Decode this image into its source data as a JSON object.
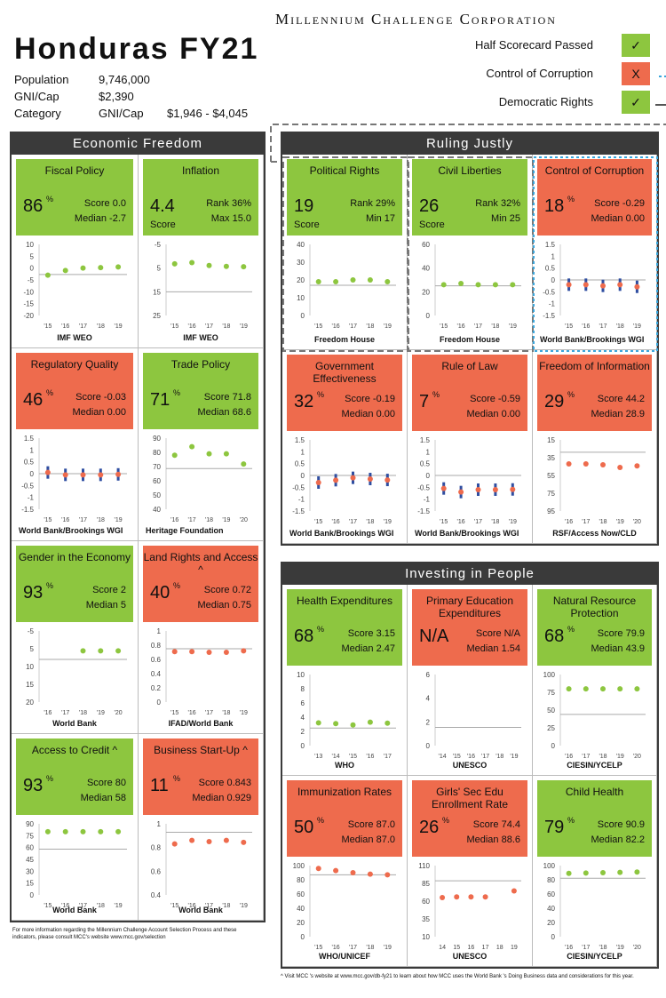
{
  "header": {
    "org": "Millennium Challenge Corporation",
    "title": "Honduras FY21"
  },
  "stats": {
    "population_label": "Population",
    "population": "9,746,000",
    "gni_label": "GNI/Cap",
    "gni": "$2,390",
    "category_label": "Category",
    "category": "GNI/Cap",
    "category_range": "$1,946 - $4,045"
  },
  "legend": [
    {
      "label": "Half Scorecard Passed",
      "mark": "✓",
      "status": "pass"
    },
    {
      "label": "Control of Corruption",
      "mark": "X",
      "status": "fail"
    },
    {
      "label": "Democratic Rights",
      "mark": "✓",
      "status": "pass"
    }
  ],
  "colors": {
    "pass": "#8dc63f",
    "fail": "#ee6b4d",
    "dark": "#3a3a3a"
  },
  "panels": {
    "economic": {
      "title": "Economic Freedom"
    },
    "ruling": {
      "title": "Ruling Justly"
    },
    "people": {
      "title": "Investing in People"
    }
  },
  "indicators": {
    "fiscal": {
      "name": "Fiscal Policy",
      "value": "86",
      "unit": "%",
      "status": "pass",
      "m1": "Score 0.0",
      "m2": "Median -2.7",
      "source": "IMF WEO",
      "chart": {
        "type": "scatter",
        "ticks": [
          "10",
          "5",
          "0",
          "-5",
          "-10",
          "-15",
          "-20"
        ],
        "min": -20,
        "max": 10,
        "threshold": -2.7,
        "x": [
          "'15",
          "'16",
          "'17",
          "'18",
          "'19"
        ],
        "values": [
          -3,
          -1,
          0,
          0.2,
          0.5
        ],
        "errors": false
      }
    },
    "inflation": {
      "name": "Inflation",
      "value": "4.4",
      "unit": "",
      "sub": "Score",
      "status": "pass",
      "m1": "Rank 36%",
      "m2": "Max 15.0",
      "source": "IMF WEO",
      "chart": {
        "type": "scatter",
        "ticks": [
          "-5",
          "5",
          "15",
          "25"
        ],
        "min": -5,
        "max": 25,
        "inverted": true,
        "threshold": 15,
        "x": [
          "'15",
          "'16",
          "'17",
          "'18",
          "'19"
        ],
        "values": [
          3.2,
          2.7,
          3.9,
          4.3,
          4.4
        ],
        "errors": false
      }
    },
    "regulatory": {
      "name": "Regulatory Quality",
      "value": "46",
      "unit": "%",
      "status": "fail",
      "m1": "Score -0.03",
      "m2": "Median 0.00",
      "source": "World Bank/Brookings WGI",
      "chart": {
        "type": "scatter",
        "ticks": [
          "1.5",
          "1",
          "0.5",
          "0",
          "-0.5",
          "-1",
          "-1.5"
        ],
        "min": -1.5,
        "max": 1.5,
        "threshold": 0,
        "x": [
          "'15",
          "'16",
          "'17",
          "'18",
          "'19"
        ],
        "values": [
          0.05,
          -0.05,
          -0.05,
          -0.05,
          -0.03
        ],
        "errors": true
      }
    },
    "trade": {
      "name": "Trade Policy",
      "value": "71",
      "unit": "%",
      "status": "pass",
      "m1": "Score 71.8",
      "m2": "Median 68.6",
      "source": "Heritage Foundation",
      "chart": {
        "type": "scatter",
        "ticks": [
          "90",
          "80",
          "70",
          "60",
          "50",
          "40"
        ],
        "min": 40,
        "max": 90,
        "threshold": 68.6,
        "x": [
          "'16",
          "'17",
          "'18",
          "'19",
          "'20"
        ],
        "values": [
          78,
          84,
          79,
          79,
          71.8
        ],
        "errors": false
      }
    },
    "gender": {
      "name": "Gender in the Economy",
      "value": "93",
      "unit": "%",
      "status": "pass",
      "m1": "Score 2",
      "m2": "Median 5",
      "source": "World Bank",
      "chart": {
        "type": "scatter",
        "ticks": [
          "-5",
          "5",
          "10",
          "15",
          "20"
        ],
        "min": -5,
        "max": 20,
        "inverted": true,
        "threshold": 5,
        "x": [
          "'16",
          "'17",
          "'18",
          "'19",
          "'20"
        ],
        "values": [
          null,
          null,
          2,
          2,
          2
        ],
        "errors": false
      }
    },
    "land": {
      "name": "Land Rights and Access ^",
      "value": "40",
      "unit": "%",
      "status": "fail",
      "m1": "Score 0.72",
      "m2": "Median 0.75",
      "source": "IFAD/World Bank",
      "chart": {
        "type": "scatter",
        "ticks": [
          "1",
          "0.8",
          "0.6",
          "0.4",
          "0.2",
          "0"
        ],
        "min": 0,
        "max": 1,
        "threshold": 0.75,
        "x": [
          "'15",
          "'16",
          "'17",
          "'18",
          "'19"
        ],
        "values": [
          0.71,
          0.71,
          0.7,
          0.7,
          0.72
        ],
        "errors": false
      }
    },
    "credit": {
      "name": "Access to Credit ^",
      "value": "93",
      "unit": "%",
      "status": "pass",
      "m1": "Score 80",
      "m2": "Median 58",
      "source": "World Bank",
      "chart": {
        "type": "scatter",
        "ticks": [
          "90",
          "75",
          "60",
          "45",
          "30",
          "15",
          "0"
        ],
        "min": 0,
        "max": 90,
        "threshold": 58,
        "x": [
          "'15",
          "'16",
          "'17",
          "'18",
          "'19"
        ],
        "values": [
          80,
          80,
          80,
          80,
          80
        ],
        "errors": false
      }
    },
    "startup": {
      "name": "Business Start-Up ^",
      "value": "11",
      "unit": "%",
      "status": "fail",
      "m1": "Score 0.843",
      "m2": "Median 0.929",
      "source": "World Bank",
      "chart": {
        "type": "scatter",
        "ticks": [
          "1",
          "0.8",
          "0.6",
          "0.4"
        ],
        "min": 0.4,
        "max": 1,
        "threshold": 0.929,
        "x": [
          "'15",
          "'16",
          "'17",
          "'18",
          "'19"
        ],
        "values": [
          0.83,
          0.86,
          0.85,
          0.86,
          0.843
        ],
        "errors": false
      }
    },
    "political": {
      "name": "Political Rights",
      "value": "19",
      "unit": "",
      "sub": "Score",
      "status": "pass",
      "m1": "Rank 29%",
      "m2": "Min 17",
      "source": "Freedom House",
      "chart": {
        "type": "scatter",
        "ticks": [
          "40",
          "30",
          "20",
          "10",
          "0"
        ],
        "min": 0,
        "max": 40,
        "threshold": 17,
        "x": [
          "'15",
          "'16",
          "'17",
          "'18",
          "'19"
        ],
        "values": [
          19,
          19,
          20,
          20,
          19
        ],
        "errors": false
      }
    },
    "civil": {
      "name": "Civil Liberties",
      "value": "26",
      "unit": "",
      "sub": "Score",
      "status": "pass",
      "m1": "Rank 32%",
      "m2": "Min 25",
      "source": "Freedom House",
      "chart": {
        "type": "scatter",
        "ticks": [
          "60",
          "40",
          "20",
          "0"
        ],
        "min": 0,
        "max": 60,
        "threshold": 25,
        "x": [
          "'15",
          "'16",
          "'17",
          "'18",
          "'19"
        ],
        "values": [
          26,
          27,
          26,
          26,
          26
        ],
        "errors": false
      }
    },
    "corruption": {
      "name": "Control of Corruption",
      "value": "18",
      "unit": "%",
      "status": "fail",
      "m1": "Score -0.29",
      "m2": "Median 0.00",
      "source": "World Bank/Brookings WGI",
      "chart": {
        "type": "scatter",
        "ticks": [
          "1.5",
          "1",
          "0.5",
          "0",
          "-0.5",
          "-1",
          "-1.5"
        ],
        "min": -1.5,
        "max": 1.5,
        "threshold": 0,
        "x": [
          "'15",
          "'16",
          "'17",
          "'18",
          "'19"
        ],
        "values": [
          -0.2,
          -0.2,
          -0.25,
          -0.2,
          -0.29
        ],
        "errors": true
      }
    },
    "government": {
      "name": "Government Effectiveness",
      "value": "32",
      "unit": "%",
      "status": "fail",
      "m1": "Score -0.19",
      "m2": "Median 0.00",
      "source": "World Bank/Brookings WGI",
      "chart": {
        "type": "scatter",
        "ticks": [
          "1.5",
          "1",
          "0.5",
          "0",
          "-0.5",
          "-1",
          "-1.5"
        ],
        "min": -1.5,
        "max": 1.5,
        "threshold": 0,
        "x": [
          "'15",
          "'16",
          "'17",
          "'18",
          "'19"
        ],
        "values": [
          -0.3,
          -0.2,
          -0.1,
          -0.15,
          -0.19
        ],
        "errors": true
      }
    },
    "rule": {
      "name": "Rule of Law",
      "value": "7",
      "unit": "%",
      "status": "fail",
      "m1": "Score -0.59",
      "m2": "Median 0.00",
      "source": "World Bank/Brookings WGI",
      "chart": {
        "type": "scatter",
        "ticks": [
          "1.5",
          "1",
          "0.5",
          "0",
          "-0.5",
          "-1",
          "-1.5"
        ],
        "min": -1.5,
        "max": 1.5,
        "threshold": 0,
        "x": [
          "'15",
          "'16",
          "'17",
          "'18",
          "'19"
        ],
        "values": [
          -0.55,
          -0.7,
          -0.6,
          -0.6,
          -0.59
        ],
        "errors": true
      }
    },
    "information": {
      "name": "Freedom of Information",
      "value": "29",
      "unit": "%",
      "status": "fail",
      "m1": "Score 44.2",
      "m2": "Median 28.9",
      "source": "RSF/Access Now/CLD",
      "chart": {
        "type": "scatter",
        "ticks": [
          "15",
          "35",
          "55",
          "75",
          "95"
        ],
        "min": 15,
        "max": 95,
        "inverted": true,
        "threshold": 28.9,
        "x": [
          "'16",
          "'17",
          "'18",
          "'19",
          "'20"
        ],
        "values": [
          42,
          42,
          43,
          46,
          44.2
        ],
        "errors": false
      }
    },
    "health": {
      "name": "Health Expenditures",
      "value": "68",
      "unit": "%",
      "status": "pass",
      "m1": "Score 3.15",
      "m2": "Median 2.47",
      "source": "WHO",
      "chart": {
        "type": "scatter",
        "ticks": [
          "10",
          "8",
          "6",
          "4",
          "2",
          "0"
        ],
        "min": 0,
        "max": 10,
        "threshold": 2.47,
        "x": [
          "'13",
          "'14",
          "'15",
          "'16",
          "'17"
        ],
        "values": [
          3.2,
          3.1,
          2.9,
          3.3,
          3.15
        ],
        "errors": false
      }
    },
    "education": {
      "name": "Primary Education Expenditures",
      "value": "N/A",
      "unit": "",
      "status": "fail",
      "m1": "Score N/A",
      "m2": "Median 1.54",
      "source": "UNESCO",
      "chart": {
        "type": "scatter",
        "ticks": [
          "6",
          "4",
          "2",
          "0"
        ],
        "min": 0,
        "max": 6,
        "threshold": 1.54,
        "x": [
          "'14",
          "'15",
          "'16",
          "'17",
          "'18",
          "'19"
        ],
        "values": [
          null,
          null,
          null,
          null,
          null,
          null
        ],
        "errors": false
      }
    },
    "natural": {
      "name": "Natural Resource Protection",
      "value": "68",
      "unit": "%",
      "status": "pass",
      "m1": "Score 79.9",
      "m2": "Median 43.9",
      "source": "CIESIN/YCELP",
      "chart": {
        "type": "scatter",
        "ticks": [
          "100",
          "75",
          "50",
          "25",
          "0"
        ],
        "min": 0,
        "max": 100,
        "threshold": 43.9,
        "x": [
          "'16",
          "'17",
          "'18",
          "'19",
          "'20"
        ],
        "values": [
          79.9,
          79.9,
          79.9,
          79.9,
          79.9
        ],
        "errors": false
      }
    },
    "immunization": {
      "name": "Immunization Rates",
      "value": "50",
      "unit": "%",
      "status": "fail",
      "m1": "Score 87.0",
      "m2": "Median 87.0",
      "source": "WHO/UNICEF",
      "chart": {
        "type": "scatter",
        "ticks": [
          "100",
          "80",
          "60",
          "40",
          "20",
          "0"
        ],
        "min": 0,
        "max": 100,
        "threshold": 87,
        "x": [
          "'15",
          "'16",
          "'17",
          "'18",
          "'19"
        ],
        "values": [
          96,
          93,
          90,
          88,
          87
        ],
        "errors": false
      }
    },
    "girls": {
      "name": "Girls' Sec Edu Enrollment Rate",
      "value": "26",
      "unit": "%",
      "status": "fail",
      "m1": "Score 74.4",
      "m2": "Median 88.6",
      "source": "UNESCO",
      "chart": {
        "type": "scatter",
        "ticks": [
          "110",
          "85",
          "60",
          "35",
          "10"
        ],
        "min": 10,
        "max": 110,
        "threshold": 88.6,
        "x": [
          "14",
          "15",
          "16",
          "17",
          "18",
          "19"
        ],
        "values": [
          65,
          66,
          66,
          66,
          null,
          74.4
        ],
        "errors": false
      }
    },
    "child": {
      "name": "Child Health",
      "value": "79",
      "unit": "%",
      "status": "pass",
      "m1": "Score 90.9",
      "m2": "Median 82.2",
      "source": "CIESIN/YCELP",
      "chart": {
        "type": "scatter",
        "ticks": [
          "100",
          "80",
          "60",
          "40",
          "20",
          "0"
        ],
        "min": 0,
        "max": 100,
        "threshold": 82.2,
        "x": [
          "'16",
          "'17",
          "'18",
          "'19",
          "'20"
        ],
        "values": [
          89,
          89.5,
          90,
          90.5,
          90.9
        ],
        "errors": false
      }
    }
  },
  "footnotes": {
    "left": "For more information regarding the Millennium Challenge Account Selection Process and these indicators, please consult MCC's website www.mcc.gov/selection",
    "right": "^ Visit MCC   's website at www.mcc.gov/db-fy21 to learn about how MCC uses the World Bank        's Doing Business data and considerations for this year."
  }
}
